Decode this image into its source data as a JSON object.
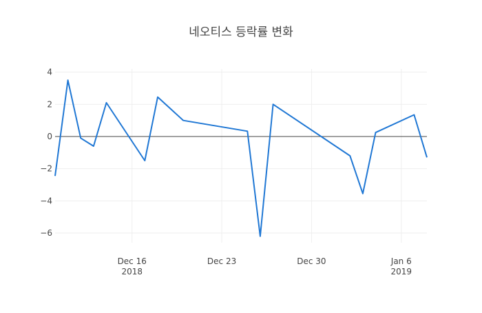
{
  "chart_data": {
    "type": "line",
    "title": "네오티스 등락률 변화",
    "xlabel": "",
    "ylabel": "",
    "x_tick_labels": [
      {
        "date": "2018-12-16",
        "label": "Dec 16",
        "sublabel": "2018"
      },
      {
        "date": "2018-12-23",
        "label": "Dec 23",
        "sublabel": ""
      },
      {
        "date": "2018-12-30",
        "label": "Dec 30",
        "sublabel": ""
      },
      {
        "date": "2019-01-06",
        "label": "Jan 6",
        "sublabel": "2019"
      }
    ],
    "y_ticks": [
      -6,
      -4,
      -2,
      0,
      2,
      4
    ],
    "y_tick_labels": [
      "−6",
      "−4",
      "−2",
      "0",
      "2",
      "4"
    ],
    "xlim": [
      "2018-12-10",
      "2019-01-07"
    ],
    "ylim": [
      -6.6,
      4.2
    ],
    "grid": true,
    "line_color": "#1f77d4",
    "series": [
      {
        "x": [
          "2018-12-10",
          "2018-12-11",
          "2018-12-12",
          "2018-12-13",
          "2018-12-14",
          "2018-12-17",
          "2018-12-18",
          "2018-12-20",
          "2018-12-25",
          "2018-12-26",
          "2018-12-27",
          "2019-01-02",
          "2019-01-03",
          "2019-01-04",
          "2019-01-07",
          "2019-01-08"
        ],
        "y": [
          -2.45,
          3.5,
          -0.1,
          -0.6,
          2.1,
          -1.5,
          2.45,
          1.0,
          0.33,
          -6.2,
          2.0,
          -1.2,
          -3.55,
          0.25,
          1.35,
          -1.3
        ]
      }
    ]
  }
}
